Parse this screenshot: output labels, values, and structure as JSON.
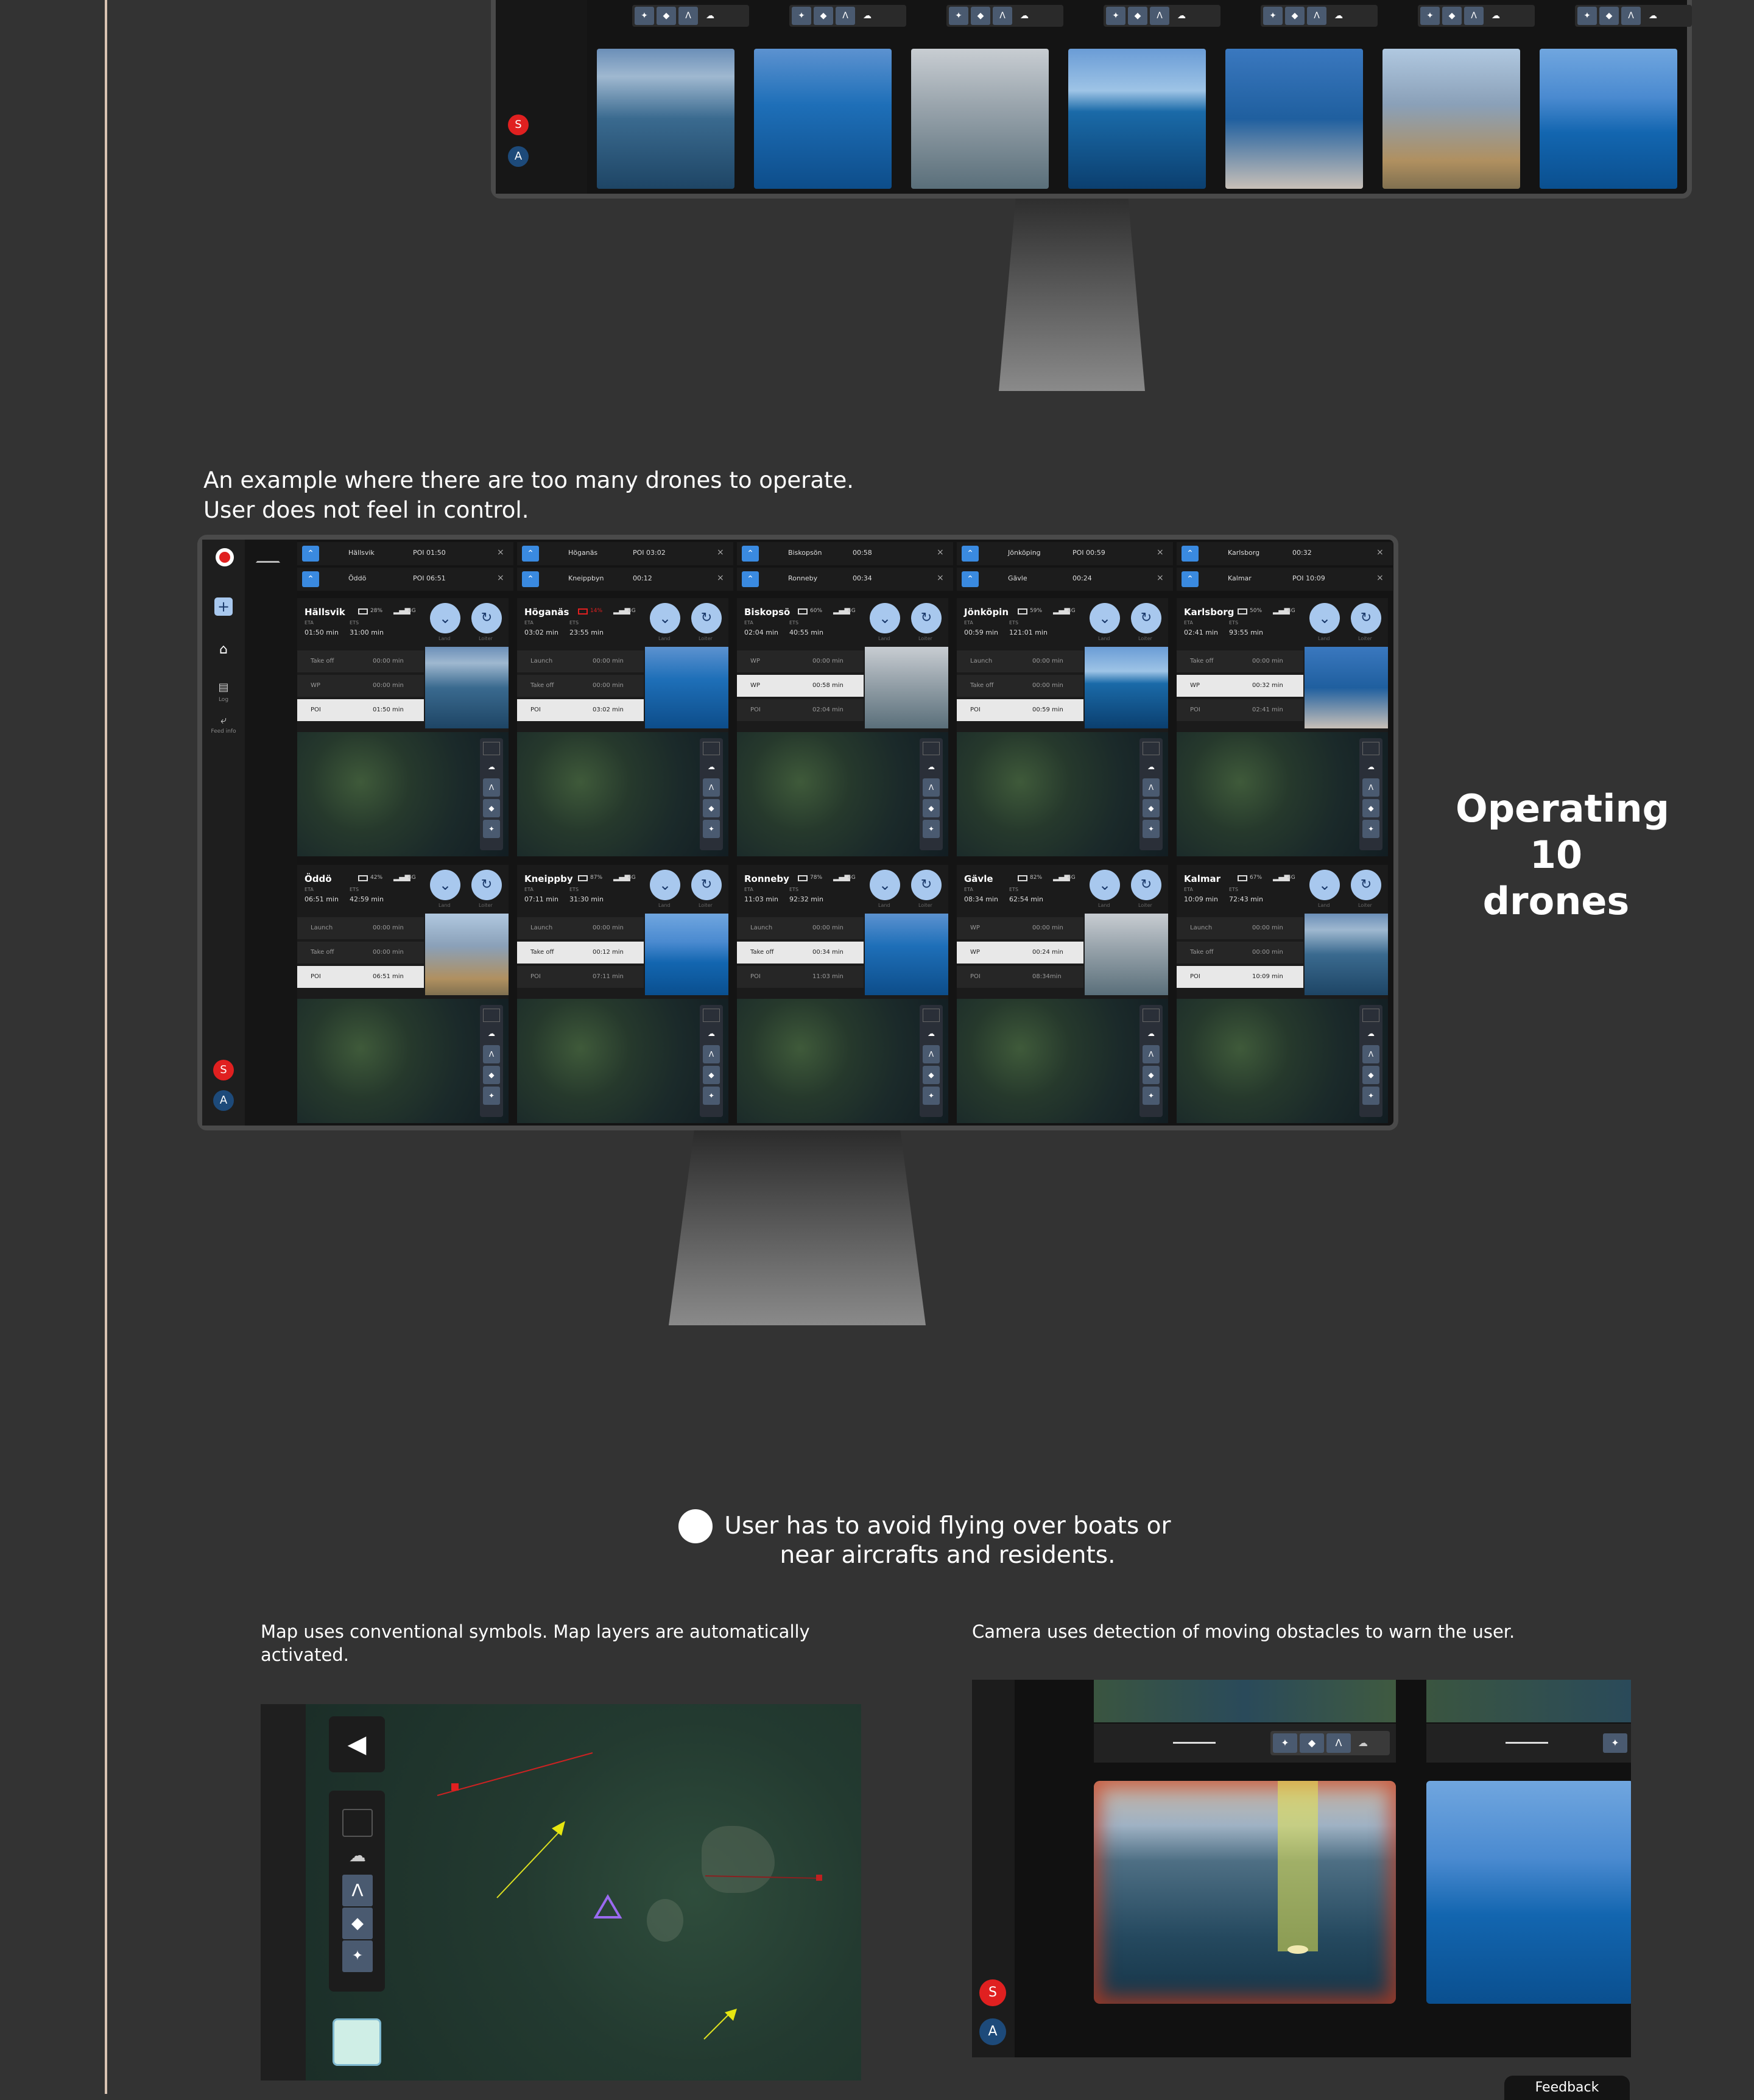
{
  "top_monitor": {
    "badges": [
      "S",
      "A"
    ]
  },
  "middle": {
    "caption_line1": "An example where there are too many drones to operate.",
    "caption_line2": "User does not feel in control.",
    "side_title_line1": "Operating",
    "side_title_line2": "10 drones",
    "tabs_row1": [
      {
        "name": "Hällsvik",
        "time": "POI 01:50"
      },
      {
        "name": "Höganäs",
        "time": "POI 03:02"
      },
      {
        "name": "Biskopsön",
        "time": "00:58"
      },
      {
        "name": "Jönköping",
        "time": "POI 00:59"
      },
      {
        "name": "Karlsborg",
        "time": "00:32"
      }
    ],
    "tabs_row2": [
      {
        "name": "Öddö",
        "time": "POI 06:51"
      },
      {
        "name": "Kneippbyn",
        "time": "00:12"
      },
      {
        "name": "Ronneby",
        "time": "00:34"
      },
      {
        "name": "Gävle",
        "time": "00:24"
      },
      {
        "name": "Kalmar",
        "time": "POI 10:09"
      }
    ],
    "sidebar": {
      "log": "Log",
      "feed": "Feed info",
      "badges": [
        "S",
        "A"
      ]
    },
    "cards": [
      {
        "name": "Hällsvik",
        "battery": "28%",
        "signal": "4G",
        "eta": "01:50 min",
        "ets": "31:00 min",
        "rows": [
          [
            "Take off",
            "00:00 min"
          ],
          [
            "WP",
            "00:00 min"
          ],
          [
            "POI",
            "01:50 min"
          ]
        ],
        "sel": 2
      },
      {
        "name": "Höganäs",
        "battery": "14%",
        "signal": "4G",
        "eta": "03:02 min",
        "ets": "23:55 min",
        "rows": [
          [
            "Launch",
            "00:00 min"
          ],
          [
            "Take off",
            "00:00 min"
          ],
          [
            "POI",
            "03:02 min"
          ]
        ],
        "sel": 2
      },
      {
        "name": "Biskopsö",
        "battery": "60%",
        "signal": "4G",
        "eta": "02:04 min",
        "ets": "40:55 min",
        "rows": [
          [
            "WP",
            "00:00 min"
          ],
          [
            "WP",
            "00:58 min"
          ],
          [
            "POI",
            "02:04 min"
          ]
        ],
        "sel": 1
      },
      {
        "name": "Jönköpin",
        "battery": "59%",
        "signal": "4G",
        "eta": "00:59 min",
        "ets": "121:01 min",
        "rows": [
          [
            "Launch",
            "00:00 min"
          ],
          [
            "Take off",
            "00:00 min"
          ],
          [
            "POI",
            "00:59 min"
          ]
        ],
        "sel": 2
      },
      {
        "name": "Karlsborg",
        "battery": "50%",
        "signal": "4G",
        "eta": "02:41 min",
        "ets": "93:55 min",
        "rows": [
          [
            "Take off",
            "00:00 min"
          ],
          [
            "WP",
            "00:32 min"
          ],
          [
            "POI",
            "02:41 min"
          ]
        ],
        "sel": 1
      },
      {
        "name": "Öddö",
        "battery": "42%",
        "signal": "4G",
        "eta": "06:51 min",
        "ets": "42:59 min",
        "rows": [
          [
            "Launch",
            "00:00 min"
          ],
          [
            "Take off",
            "00:00 min"
          ],
          [
            "POI",
            "06:51 min"
          ]
        ],
        "sel": 2
      },
      {
        "name": "Kneippby",
        "battery": "87%",
        "signal": "4G",
        "eta": "07:11 min",
        "ets": "31:30 min",
        "rows": [
          [
            "Launch",
            "00:00 min"
          ],
          [
            "Take off",
            "00:12 min"
          ],
          [
            "POI",
            "07:11 min"
          ]
        ],
        "sel": 1
      },
      {
        "name": "Ronneby",
        "battery": "78%",
        "signal": "4G",
        "eta": "11:03 min",
        "ets": "92:32 min",
        "rows": [
          [
            "Launch",
            "00:00 min"
          ],
          [
            "Take off",
            "00:34 min"
          ],
          [
            "POI",
            "11:03 min"
          ]
        ],
        "sel": 1
      },
      {
        "name": "Gävle",
        "battery": "82%",
        "signal": "4G",
        "eta": "08:34 min",
        "ets": "62:54 min",
        "rows": [
          [
            "WP",
            "00:00 min"
          ],
          [
            "WP",
            "00:24 min"
          ],
          [
            "POI",
            "08:34min"
          ]
        ],
        "sel": 1
      },
      {
        "name": "Kalmar",
        "battery": "67%",
        "signal": "4G",
        "eta": "10:09 min",
        "ets": "72:43 min",
        "rows": [
          [
            "Launch",
            "00:00 min"
          ],
          [
            "Take off",
            "00:00 min"
          ],
          [
            "POI",
            "10:09 min"
          ]
        ],
        "sel": 2
      }
    ],
    "labels": {
      "eta": "ETA",
      "ets": "ETS",
      "land": "Land",
      "loiter": "Loiter"
    }
  },
  "bottom": {
    "bullet_line1": "User has to avoid flying over boats or",
    "bullet_line2": "near aircrafts and residents.",
    "left_caption_line1": "Map uses conventional symbols. Map layers are automatically",
    "left_caption_line2": "activated.",
    "right_caption": "Camera uses detection of moving obstacles to warn the user.",
    "badges": [
      "S",
      "A"
    ],
    "feedback": "Feedback"
  }
}
